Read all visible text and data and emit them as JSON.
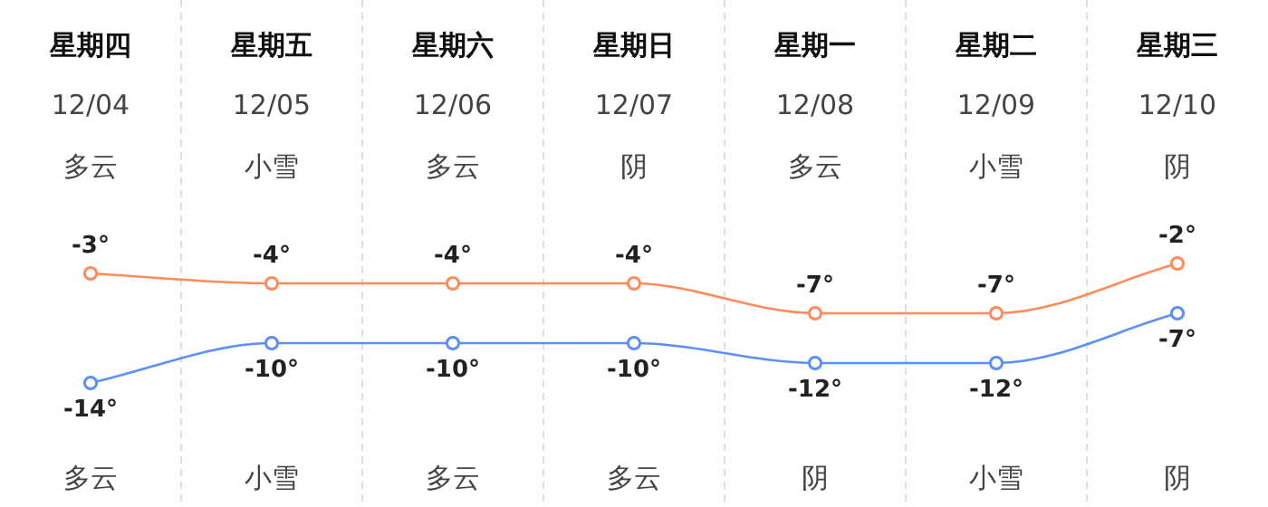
{
  "chart_data": {
    "type": "line",
    "categories": [
      "星期四\n12/04\n多云",
      "星期五\n12/05\n小雪",
      "星期六\n12/06\n多云",
      "星期日\n12/07\n阴",
      "星期一\n12/08\n多云",
      "星期二\n12/09\n小雪",
      "星期三\n12/10\n阴"
    ],
    "series": [
      {
        "color": "#ff8a5b",
        "values": [
          -3,
          -4,
          -4,
          -4,
          -7,
          -7,
          -2
        ],
        "value_labels": [
          "-3°",
          "-4°",
          "-4°",
          "-4°",
          "-7°",
          "-7°",
          "-2°"
        ]
      },
      {
        "color": "#5b8ff9",
        "values": [
          -14,
          -10,
          -10,
          -10,
          -12,
          -12,
          -7
        ],
        "value_labels": [
          "-14°",
          "-10°",
          "-10°",
          "-10°",
          "-12°",
          "-12°",
          "-7°"
        ]
      }
    ],
    "annotations": [
      "多云",
      "小雪",
      "多云",
      "多云",
      "阴",
      "小雪",
      "阴"
    ],
    "marker": "circle",
    "grid": "x"
  }
}
